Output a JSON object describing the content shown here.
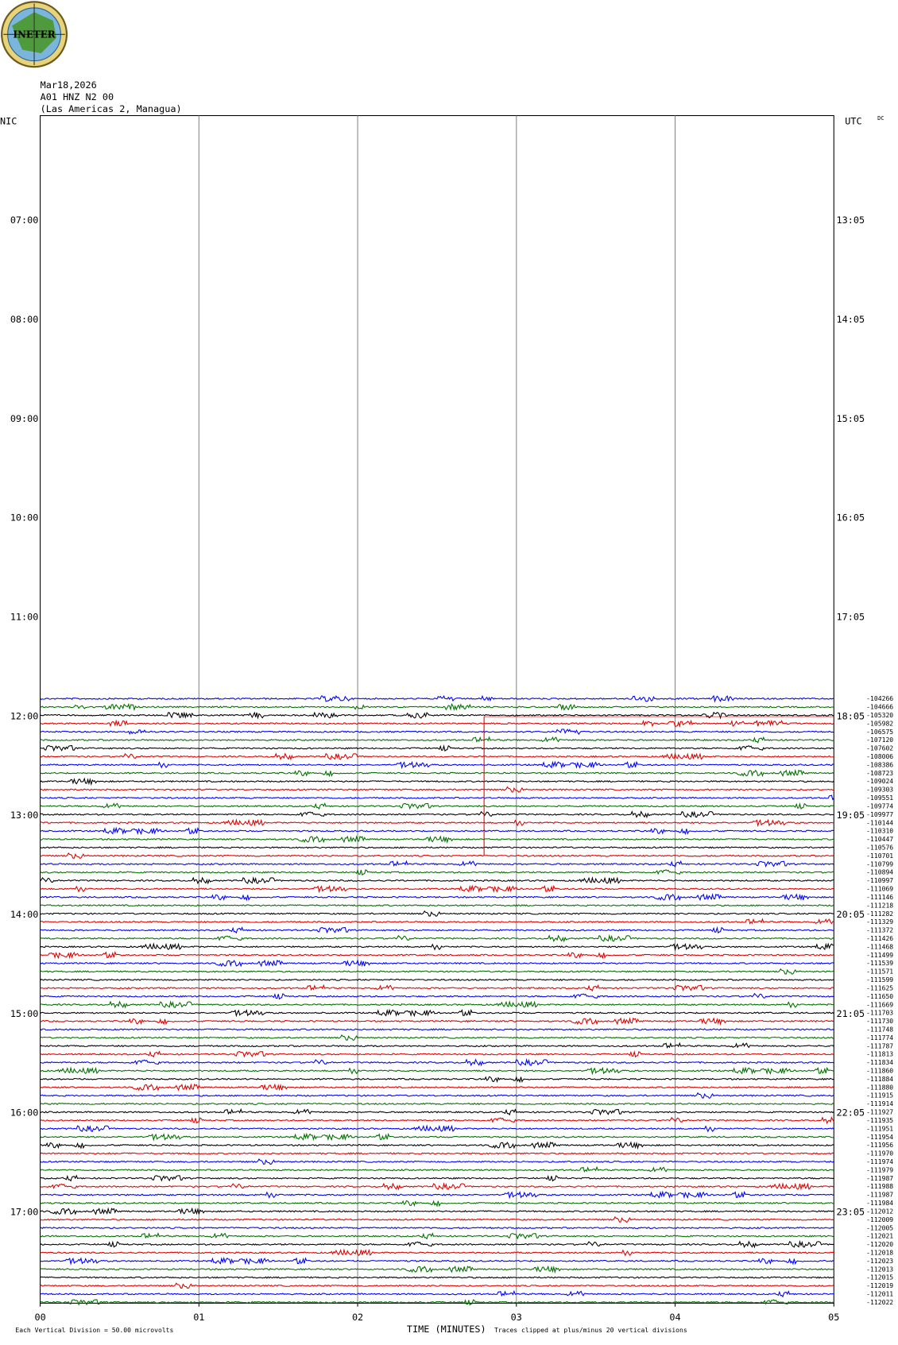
{
  "header": {
    "date": "Mar18,2026",
    "station": "A01 HNZ N2 00",
    "location": "(Las Americas 2, Managua)"
  },
  "logo_text": "INETER",
  "left_label": "NIC",
  "right_label": "UTC",
  "dc_label": "DC",
  "left_hours": [
    "07:00",
    "08:00",
    "09:00",
    "10:00",
    "11:00",
    "12:00",
    "13:00",
    "14:00",
    "15:00",
    "16:00",
    "17:00"
  ],
  "right_hours": [
    "13:05",
    "14:05",
    "15:05",
    "16:05",
    "17:05",
    "18:05",
    "19:05",
    "20:05",
    "21:05",
    "22:05",
    "23:05"
  ],
  "x_ticks": [
    "00",
    "01",
    "02",
    "03",
    "04",
    "05"
  ],
  "x_label": "TIME (MINUTES)",
  "footer_left": "Each Vertical Division =  50.00 microvolts",
  "footer_right": "Traces clipped at plus/minus 20 vertical divisions",
  "trace_offsets": [
    -104266,
    -104666,
    -105320,
    -105982,
    -106575,
    -107120,
    -107602,
    -108006,
    -108386,
    -108723,
    -109024,
    -109303,
    -109551,
    -109774,
    -109977,
    -110144,
    -110310,
    -110447,
    -110576,
    -110701,
    -110799,
    -110894,
    -110997,
    -111069,
    -111146,
    -111218,
    -111282,
    -111329,
    -111372,
    -111426,
    -111468,
    -111499,
    -111539,
    -111571,
    -111599,
    -111625,
    -111650,
    -111669,
    -111703,
    -111730,
    -111748,
    -111774,
    -111787,
    -111813,
    -111834,
    -111860,
    -111884,
    -111880,
    -111915,
    -111914,
    -111927,
    -111935,
    -111951,
    -111954,
    -111956,
    -111970,
    -111974,
    -111979,
    -111987,
    -111988,
    -111987,
    -111984,
    -112012,
    -112009,
    -112005,
    -112021,
    -112020,
    -112018,
    -112023,
    -112013,
    -112015,
    -112019,
    -112011,
    -112022
  ]
}
